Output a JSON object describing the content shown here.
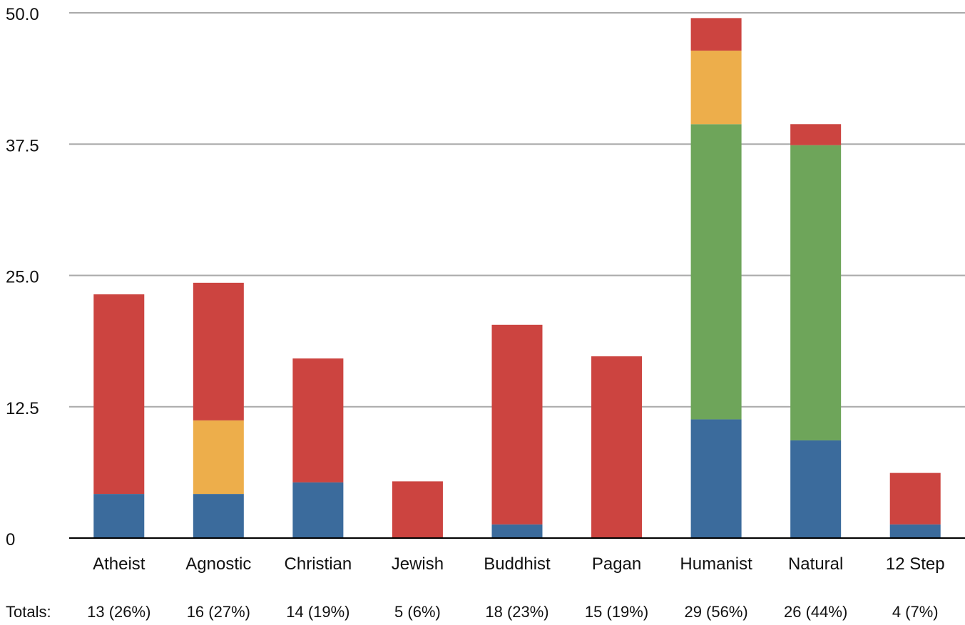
{
  "chart_data": {
    "type": "bar",
    "stacked": true,
    "categories": [
      "Atheist",
      "Agnostic",
      "Christian",
      "Jewish",
      "Buddhist",
      "Pagan",
      "Humanist",
      "Natural",
      "12 Step"
    ],
    "series": [
      {
        "color": "#3b6b9c",
        "values": [
          4.2,
          4.2,
          5.3,
          0,
          1.3,
          0,
          11.3,
          9.3,
          1.3
        ]
      },
      {
        "color": "#6ea55a",
        "values": [
          0,
          0,
          0,
          0,
          0,
          0,
          28.1,
          28.1,
          0
        ]
      },
      {
        "color": "#edae4b",
        "values": [
          0,
          7.0,
          0,
          0,
          0,
          0,
          7.0,
          0,
          0
        ]
      },
      {
        "color": "#cc4440",
        "values": [
          19.0,
          13.1,
          11.8,
          5.4,
          19.0,
          17.3,
          3.1,
          2.0,
          4.9
        ]
      }
    ],
    "yticks": [
      "0",
      "12.5",
      "25.0",
      "37.5",
      "50.0"
    ],
    "ylim": [
      0,
      50
    ],
    "grid": true,
    "totals_label": "Totals:",
    "totals": [
      "13 (26%)",
      "16 (27%)",
      "14 (19%)",
      "5 (6%)",
      "18 (23%)",
      "15 (19%)",
      "29 (56%)",
      "26 (44%)",
      "4 (7%)"
    ],
    "gridline_color": "#aaaaaa",
    "axis_color": "#000000"
  }
}
